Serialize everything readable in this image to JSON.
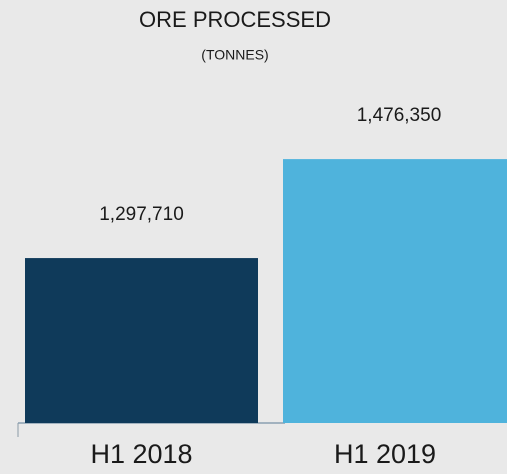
{
  "chart_data": {
    "type": "bar",
    "title": "ORE PROCESSED",
    "subtitle": "(TONNES)",
    "categories": [
      "H1 2018",
      "H1 2019"
    ],
    "values": [
      1297710,
      1476350
    ],
    "value_labels": [
      "1,297,710",
      "1,476,350"
    ],
    "colors": [
      "#0f3a5a",
      "#4fb3dc"
    ],
    "ylim": [
      1000000,
      1500000
    ]
  }
}
